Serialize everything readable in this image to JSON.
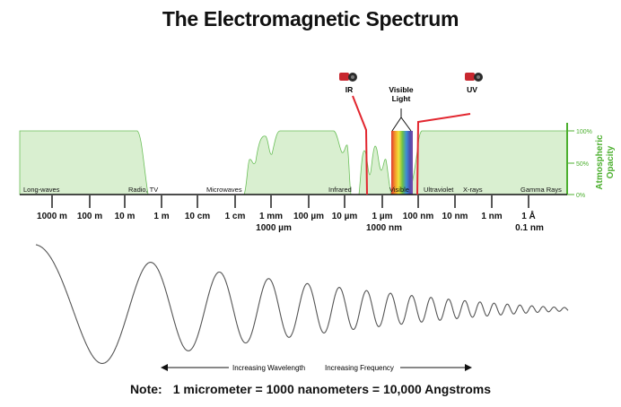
{
  "title": "The Electromagnetic Spectrum",
  "markers": {
    "ir": "IR",
    "visible_line1": "Visible",
    "visible_line2": "Light",
    "uv": "UV"
  },
  "bands": [
    "Long-waves",
    "Radio, TV",
    "Microwaves",
    "Infrared",
    "Visible",
    "Ultraviolet",
    "X-rays",
    "Gamma Rays"
  ],
  "ticks": [
    "1000 m",
    "100 m",
    "10 m",
    "1 m",
    "10 cm",
    "1 cm",
    "1 mm",
    "100 µm",
    "10 µm",
    "1 µm",
    "100 nm",
    "10 nm",
    "1 nm",
    "1 Å"
  ],
  "tick_sublabels": {
    "mm": "1000 µm",
    "um": "1000 nm",
    "angstrom": "0.1 nm"
  },
  "opacity_axis": {
    "label_line1": "Atmospheric",
    "label_line2": "Opacity",
    "ticks": [
      "100%",
      "50%",
      "0%"
    ]
  },
  "wave_labels": {
    "wavelength": "Increasing Wavelength",
    "frequency": "Increasing Frequency"
  },
  "note": {
    "label": "Note:",
    "text": "1 micrometer = 1000 nanometers = 10,000 Angstroms"
  },
  "colors": {
    "opacity_fill": "#d9efd0",
    "opacity_line": "#6bbf59",
    "axis_green": "#4caf2f",
    "marker_red": "#e2262f"
  }
}
